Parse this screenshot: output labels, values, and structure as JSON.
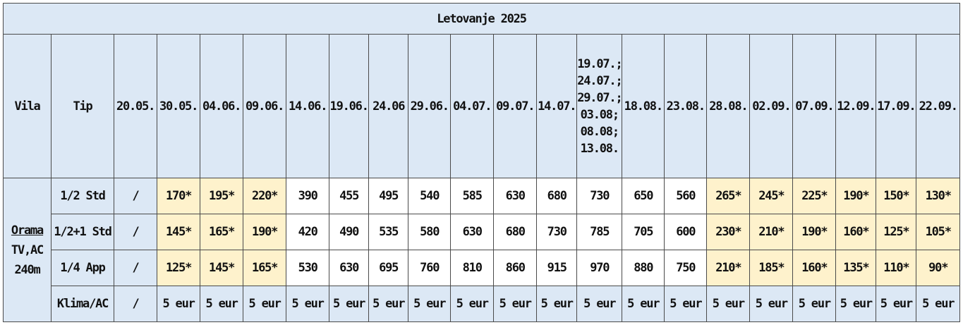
{
  "title": "Letovanje 2025",
  "headers": {
    "vila": "Vila",
    "tip": "Tip",
    "dates": [
      "20.05.",
      "30.05.",
      "04.06.",
      "09.06.",
      "14.06.",
      "19.06.",
      "24.06",
      "29.06.",
      "04.07.",
      "09.07.",
      "14.07.",
      "19.07.;\n24.07.;\n29.07.;\n03.08;\n08.08;\n13.08.",
      "18.08.",
      "23.08.",
      "28.08.",
      "02.09.",
      "07.09.",
      "12.09.",
      "17.09.",
      "22.09."
    ],
    "multi_date_lines": [
      "19.07.;",
      "24.07.;",
      "29.07.;",
      "03.08;",
      "08.08;",
      "13.08."
    ]
  },
  "vila": {
    "name": "Orama",
    "amenities": "TV,AC",
    "distance": "240m"
  },
  "rows": [
    {
      "tip": "1/2 Std",
      "values": [
        "/",
        "170*",
        "195*",
        "220*",
        "390",
        "455",
        "495",
        "540",
        "585",
        "630",
        "680",
        "730",
        "650",
        "560",
        "265*",
        "245*",
        "225*",
        "190*",
        "150*",
        "130*"
      ]
    },
    {
      "tip": "1/2+1 Std",
      "values": [
        "/",
        "145*",
        "165*",
        "190*",
        "420",
        "490",
        "535",
        "580",
        "630",
        "680",
        "730",
        "785",
        "705",
        "600",
        "230*",
        "210*",
        "190*",
        "160*",
        "125*",
        "105*"
      ]
    },
    {
      "tip": "1/4 App",
      "values": [
        "/",
        "125*",
        "145*",
        "165*",
        "530",
        "630",
        "695",
        "760",
        "810",
        "860",
        "915",
        "970",
        "880",
        "750",
        "210*",
        "185*",
        "160*",
        "135*",
        "110*",
        "90*"
      ]
    },
    {
      "tip": "Klima/AC",
      "values": [
        "/",
        "5 eur",
        "5 eur",
        "5 eur",
        "5 eur",
        "5 eur",
        "5 eur",
        "5 eur",
        "5 eur",
        "5 eur",
        "5 eur",
        "5 eur",
        "5 eur",
        "5 eur",
        "5 eur",
        "5 eur",
        "5 eur",
        "5 eur",
        "5 eur",
        "5 eur"
      ]
    }
  ],
  "colors": {
    "header_bg": "#dce8f5",
    "highlight_bg": "#fef2cc",
    "plain_bg": "#ffffff",
    "border": "#4a4a4a"
  }
}
